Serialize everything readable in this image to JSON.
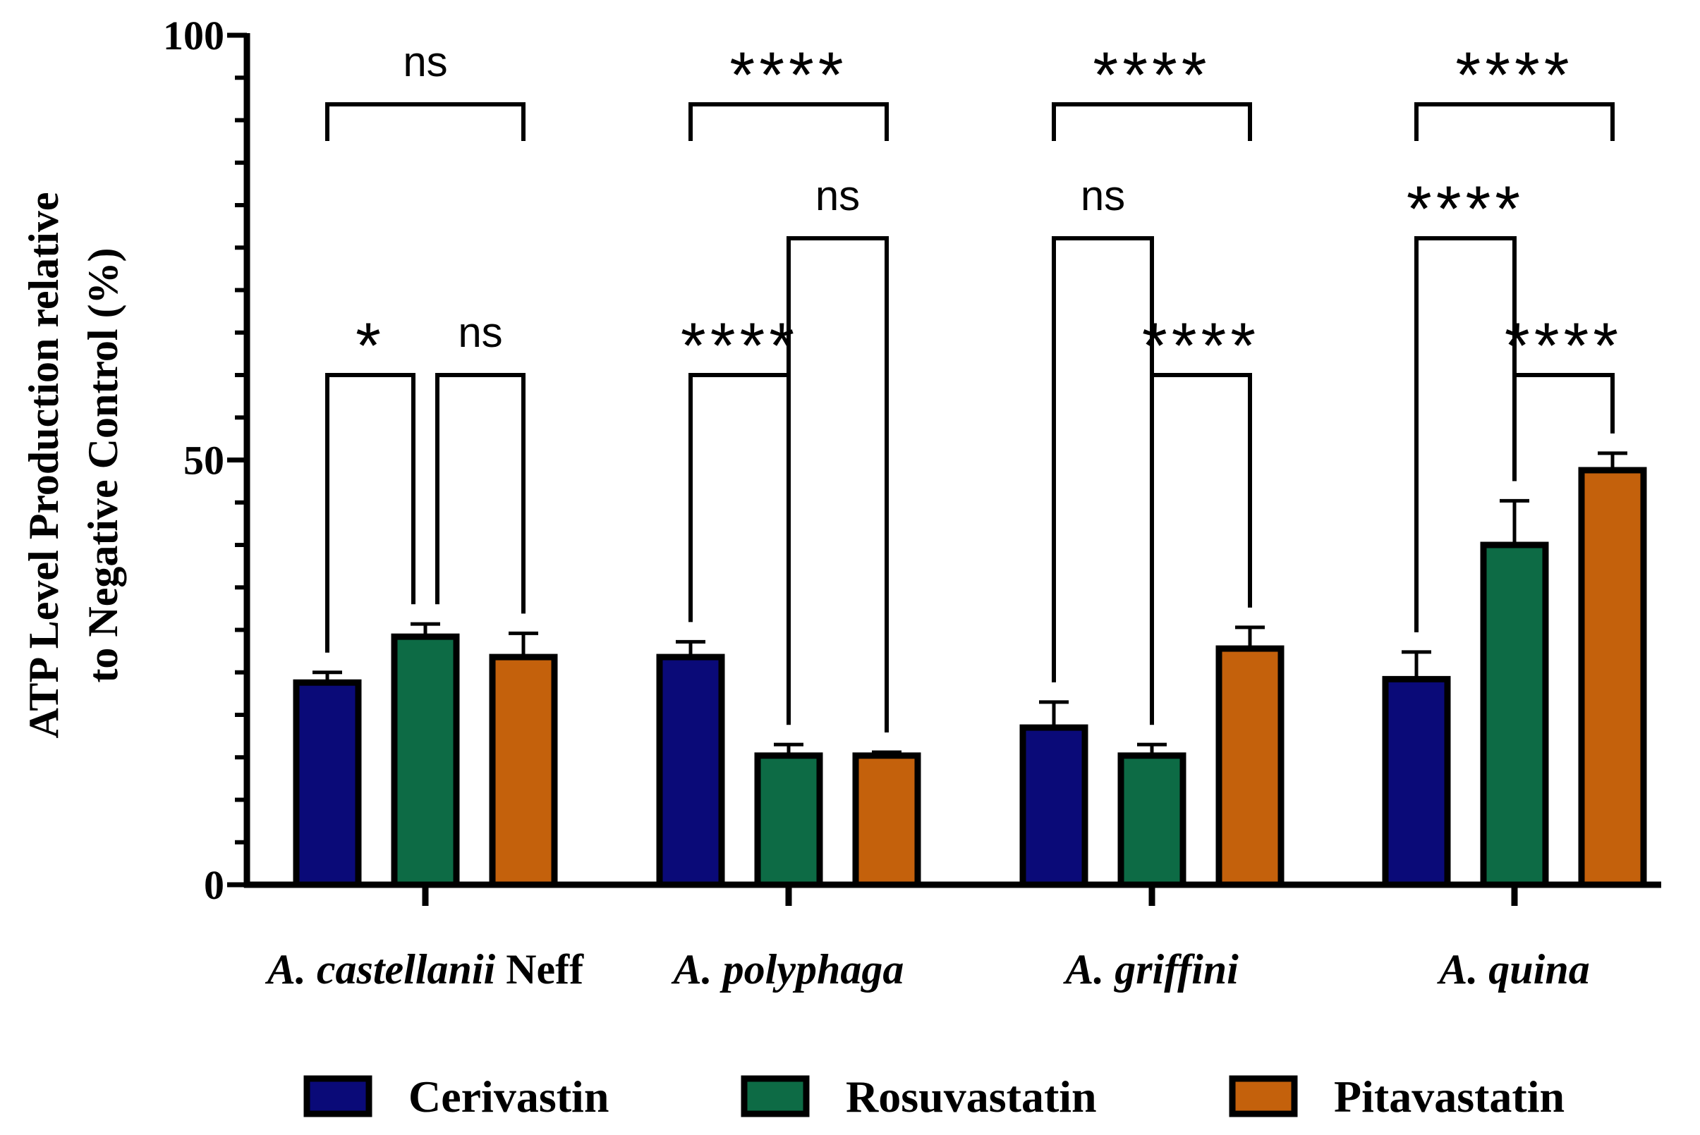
{
  "chart_data": {
    "type": "bar",
    "ylabel_line1": "ATP Level Production relative",
    "ylabel_line2": "to Negative Control (%)",
    "ylim": [
      0,
      100
    ],
    "yticks": [
      "0",
      "50",
      "100"
    ],
    "yticks_values": [
      0,
      50,
      100
    ],
    "minor_tick_step": 5,
    "groups": [
      {
        "italic": "A. castellanii",
        "suffix": " Neff"
      },
      {
        "italic": "A. polyphaga",
        "suffix": ""
      },
      {
        "italic": "A. griffini",
        "suffix": ""
      },
      {
        "italic": "A. quina",
        "suffix": ""
      }
    ],
    "series": [
      {
        "name": "Cerivastin",
        "color": "#0a0a78",
        "values": [
          23.8,
          26.8,
          18.5,
          24.2
        ],
        "errors": [
          1.2,
          1.8,
          3.0,
          3.2
        ]
      },
      {
        "name": "Rosuvastatin",
        "color": "#0d6b45",
        "values": [
          29.2,
          15.2,
          15.2,
          40.0
        ],
        "errors": [
          1.5,
          1.3,
          1.3,
          5.2
        ]
      },
      {
        "name": "Pitavastatin",
        "color": "#c4610c",
        "values": [
          26.8,
          15.2,
          27.8,
          48.8
        ],
        "errors": [
          2.8,
          0.4,
          2.5,
          2.0
        ]
      }
    ],
    "significance": [
      {
        "group": 0,
        "from": 0,
        "to": 2,
        "label": "ns"
      },
      {
        "group": 0,
        "from": 0,
        "to": 1,
        "label": "*"
      },
      {
        "group": 0,
        "from": 1,
        "to": 2,
        "label": "ns"
      },
      {
        "group": 1,
        "from": 0,
        "to": 2,
        "label": "****"
      },
      {
        "group": 1,
        "from": 1,
        "to": 2,
        "label": "ns"
      },
      {
        "group": 1,
        "from": 0,
        "to": 1,
        "label": "****"
      },
      {
        "group": 2,
        "from": 0,
        "to": 2,
        "label": "****"
      },
      {
        "group": 2,
        "from": 0,
        "to": 1,
        "label": "ns"
      },
      {
        "group": 2,
        "from": 1,
        "to": 2,
        "label": "****"
      },
      {
        "group": 3,
        "from": 0,
        "to": 2,
        "label": "****"
      },
      {
        "group": 3,
        "from": 0,
        "to": 1,
        "label": "****"
      },
      {
        "group": 3,
        "from": 1,
        "to": 2,
        "label": "****"
      }
    ]
  }
}
